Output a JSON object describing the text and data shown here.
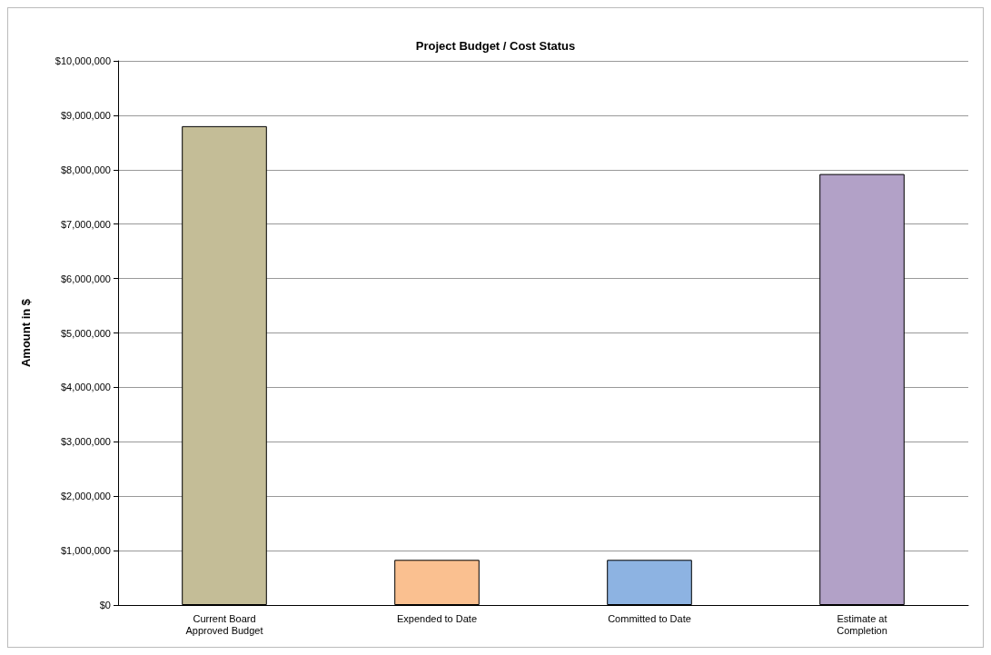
{
  "chart_data": {
    "type": "bar",
    "title": "Project Budget / Cost Status",
    "ylabel": "Amount in $",
    "categories": [
      "Current Board\nApproved Budget",
      "Expended to Date",
      "Committed to Date",
      "Estimate at\nCompletion"
    ],
    "values": [
      8800000,
      830000,
      830000,
      7920000
    ],
    "colors": [
      "#c4bd97",
      "#fac090",
      "#8db3e2",
      "#b2a1c7"
    ],
    "ylim": [
      0,
      10000000
    ],
    "yticks": [
      {
        "value": 0,
        "label": "$0"
      },
      {
        "value": 1000000,
        "label": "$1,000,000"
      },
      {
        "value": 2000000,
        "label": "$2,000,000"
      },
      {
        "value": 3000000,
        "label": "$3,000,000"
      },
      {
        "value": 4000000,
        "label": "$4,000,000"
      },
      {
        "value": 5000000,
        "label": "$5,000,000"
      },
      {
        "value": 6000000,
        "label": "$6,000,000"
      },
      {
        "value": 7000000,
        "label": "$7,000,000"
      },
      {
        "value": 8000000,
        "label": "$8,000,000"
      },
      {
        "value": 9000000,
        "label": "$9,000,000"
      },
      {
        "value": 10000000,
        "label": "$10,000,000"
      }
    ],
    "grid": "y"
  }
}
